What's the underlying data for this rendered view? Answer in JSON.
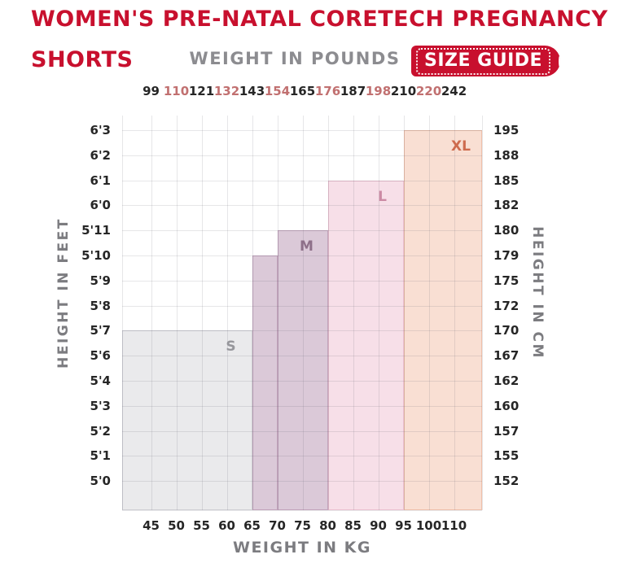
{
  "header": {
    "title_line1": "WOMEN'S PRE-NATAL CORETECH PREGNANCY",
    "title_line2": "SHORTS",
    "size_guide_label": "SIZE GUIDE"
  },
  "colors": {
    "accent_red": "#C8102E",
    "axis_tick": "#262626",
    "pounds_alt_tick": "#C17070",
    "axis_title": "#7C7C80",
    "header_muted": "#8C8C90",
    "gridline": "#E2E2E4",
    "background": "#FFFFFF"
  },
  "chart_data": {
    "type": "step-area",
    "title": "Size guide: garment size regions by weight (x) and height (y)",
    "grid": true,
    "top_axis": {
      "label": "WEIGHT IN POUNDS",
      "ticks": [
        "99",
        "110",
        "121",
        "132",
        "143",
        "154",
        "165",
        "176",
        "187",
        "198",
        "210",
        "220",
        "242"
      ],
      "tick_color_pattern": "alternating dark and muted red"
    },
    "bottom_axis": {
      "label": "WEIGHT IN KG",
      "ticks": [
        "45",
        "50",
        "55",
        "60",
        "65",
        "70",
        "75",
        "80",
        "85",
        "90",
        "95",
        "100",
        "110"
      ]
    },
    "left_axis": {
      "label": "HEIGHT IN FEET",
      "ticks": [
        "6'3",
        "6'2",
        "6'1",
        "6'0",
        "5'11",
        "5'10",
        "5'9",
        "5'8",
        "5'7",
        "5'6",
        "5'4",
        "5'3",
        "5'2",
        "5'1",
        "5'0"
      ]
    },
    "right_axis": {
      "label": "HEIGHT IN CM",
      "ticks": [
        "195",
        "188",
        "185",
        "182",
        "180",
        "179",
        "175",
        "172",
        "170",
        "167",
        "162",
        "160",
        "157",
        "155",
        "152"
      ]
    },
    "regions": [
      {
        "size": "S",
        "kg_range": [
          null,
          65
        ],
        "max_height": "5'7",
        "segments": [
          {
            "from": "left",
            "to": "65",
            "top": "5'7"
          }
        ],
        "fill": "#EAEAEC",
        "border": "#CFCFD4",
        "label_color": "#97979C"
      },
      {
        "size": "M",
        "kg_range": [
          65,
          80
        ],
        "max_height": "5'11",
        "segments": [
          {
            "from": "65",
            "to": "70",
            "top": "5'10"
          },
          {
            "from": "70",
            "to": "80",
            "top": "5'11"
          }
        ],
        "fill": "#DBC9D8",
        "border": "#C2A3BB",
        "label_color": "#8E7089"
      },
      {
        "size": "L",
        "kg_range": [
          80,
          95
        ],
        "max_height": "6'1",
        "segments": [
          {
            "from": "80",
            "to": "95",
            "top": "6'1"
          }
        ],
        "fill": "#F7DFE8",
        "border": "#EBC0D0",
        "label_color": "#CB8AA4"
      },
      {
        "size": "XL",
        "kg_range": [
          95,
          null
        ],
        "max_height": "6'3",
        "segments": [
          {
            "from": "95",
            "to": "right",
            "top": "6'3"
          }
        ],
        "fill": "#F9DFD3",
        "border": "#EFBFA9",
        "label_color": "#CE6B4E"
      }
    ]
  }
}
